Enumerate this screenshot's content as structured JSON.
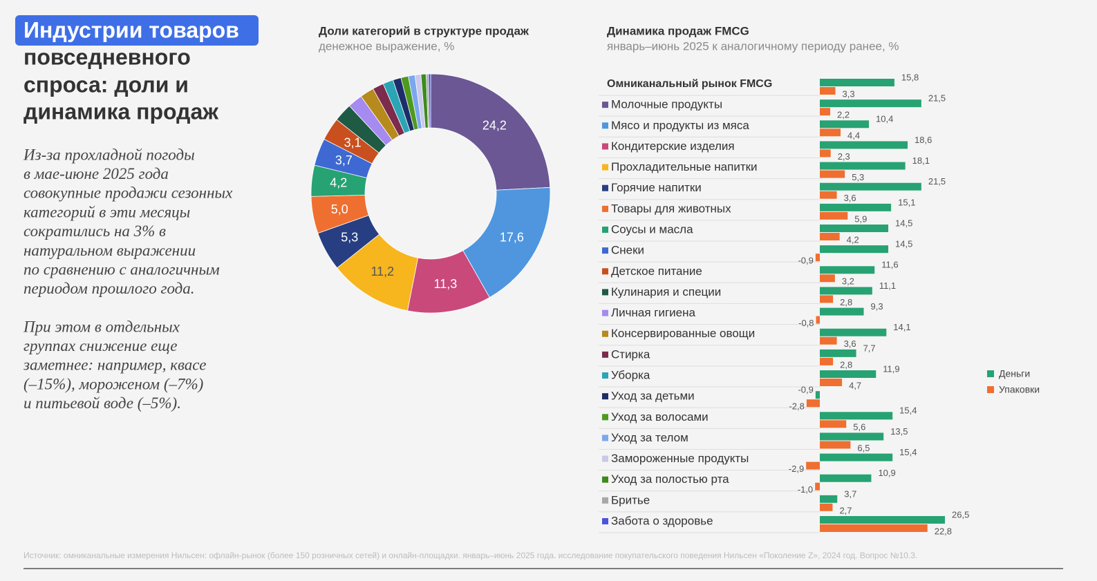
{
  "header": {
    "title": [
      "Индустрии товаров",
      "повседневного",
      "спроса: доли и",
      "динамика продаж"
    ]
  },
  "text": [
    [
      "Из-за прохладной погоды",
      "в мае-июне 2025 года",
      "совокупные продажи сезонных",
      "категорий в эти месяцы",
      "сократились на 3% в",
      "натуральном выражении",
      "по сравнению с аналогичным",
      "периодом прошлого года."
    ],
    [
      "При этом в отдельных",
      "группах снижение еще",
      "заметнее: например, квасе",
      "(–15%), мороженом (–7%)",
      "и питьевой воде (–5%)."
    ]
  ],
  "source": "Источник: омниканальные измерения Нильсен: офлайн-рынок (более 150 розничных сетей) и онлайн-площадки. январь–июнь 2025 года. исследование покупательского поведения Нильсен «Поколение Z», 2024 год. Вопрос №10.3.",
  "chart_data": [
    {
      "type": "donut",
      "title": "Доли категорий в структуре продаж",
      "subtitle": "денежное выражение, %",
      "values": [
        24.2,
        17.6,
        11.3,
        11.2,
        5.3,
        5.0,
        4.2,
        3.7,
        3.1,
        2.5,
        2.0,
        1.9,
        1.5,
        1.4,
        1.1,
        1.0,
        0.9,
        0.8,
        0.7,
        0.3,
        0.3
      ],
      "value_labels": [
        "24,2",
        "17,6",
        "11,3",
        "11,2",
        "5,3",
        "5,0",
        "4,2",
        "3,7",
        "3,1",
        null,
        null,
        null,
        null,
        null,
        null,
        null,
        null,
        null,
        null,
        null,
        null
      ],
      "colors": [
        "#6a5794",
        "#4f96df",
        "#c9497b",
        "#f7b51e",
        "#273f82",
        "#ef6f30",
        "#27a273",
        "#3e69d2",
        "#c9501e",
        "#1f5a45",
        "#a58af0",
        "#b68a1c",
        "#7c2b4c",
        "#2ba5b5",
        "#1d2d6a",
        "#4e9a1e",
        "#7ba7ef",
        "#c9c9e8",
        "#3e8a1e",
        "#a8a8a8",
        "#4a55d8"
      ]
    },
    {
      "type": "hbar",
      "title": "Динамика продаж FMCG",
      "subtitle": "январь–июнь 2025 к аналогичному периоду ранее, %",
      "categories": [
        "Омниканальный рынок FMCG",
        "Молочные продукты",
        "Мясо и продукты из мяса",
        "Кондитерские изделия",
        "Прохладительные напитки",
        "Горячие напитки",
        "Товары для животных",
        "Соусы и масла",
        "Снеки",
        "Детское питание",
        "Кулинария и специи",
        "Личная гигиена",
        "Консервированные овощи",
        "Стирка",
        "Уборка",
        "Уход за детьми",
        "Уход за волосами",
        "Уход за телом",
        "Замороженные продукты",
        "Уход за полостью рта",
        "Бритье",
        "Забота о здоровье"
      ],
      "legend": "right",
      "series": [
        {
          "name": "Деньги",
          "color": "#27a273",
          "values": [
            15.8,
            21.5,
            10.4,
            18.6,
            18.1,
            21.5,
            15.1,
            14.5,
            14.5,
            11.6,
            11.1,
            9.3,
            14.1,
            7.7,
            11.9,
            -0.9,
            15.4,
            13.5,
            15.4,
            10.9,
            3.7,
            26.5
          ],
          "value_labels": [
            "15,8",
            "21,5",
            "10,4",
            "18,6",
            "18,1",
            "21,5",
            "15,1",
            "14,5",
            "14,5",
            "11,6",
            "11,1",
            "9,3",
            "14,1",
            "7,7",
            "11,9",
            "-0,9",
            "15,4",
            "13,5",
            "15,4",
            "10,9",
            "3,7",
            "26,5"
          ]
        },
        {
          "name": "Упаковки",
          "color": "#ef6f30",
          "values": [
            3.3,
            2.2,
            4.4,
            2.3,
            5.3,
            3.6,
            5.9,
            4.2,
            -0.9,
            3.2,
            2.8,
            -0.8,
            3.6,
            2.8,
            4.7,
            -2.8,
            5.6,
            6.5,
            -2.9,
            -1.0,
            2.7,
            22.8
          ],
          "value_labels": [
            "3,3",
            "2,2",
            "4,4",
            "2,3",
            "5,3",
            "3,6",
            "5,9",
            "4,2",
            "-0,9",
            "3,2",
            "2,8",
            "-0,8",
            "3,6",
            "2,8",
            "4,7",
            "-2,8",
            "5,6",
            "6,5",
            "-2,9",
            "-1,0",
            "2,7",
            "22,8"
          ]
        }
      ]
    }
  ]
}
